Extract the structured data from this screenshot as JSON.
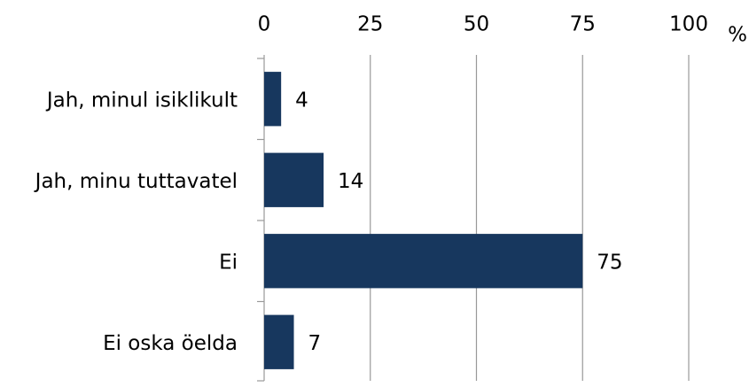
{
  "chart_data": {
    "type": "hbar",
    "categories": [
      "Jah, minul isiklikult",
      "Jah, minu tuttavatel",
      "Ei",
      "Ei oska öelda"
    ],
    "values": [
      4,
      14,
      75,
      7
    ],
    "color": "#17375e",
    "xlim": [
      0,
      100
    ],
    "xticks": [
      0,
      25,
      50,
      75,
      100
    ],
    "x_label": "%",
    "grid": true
  }
}
